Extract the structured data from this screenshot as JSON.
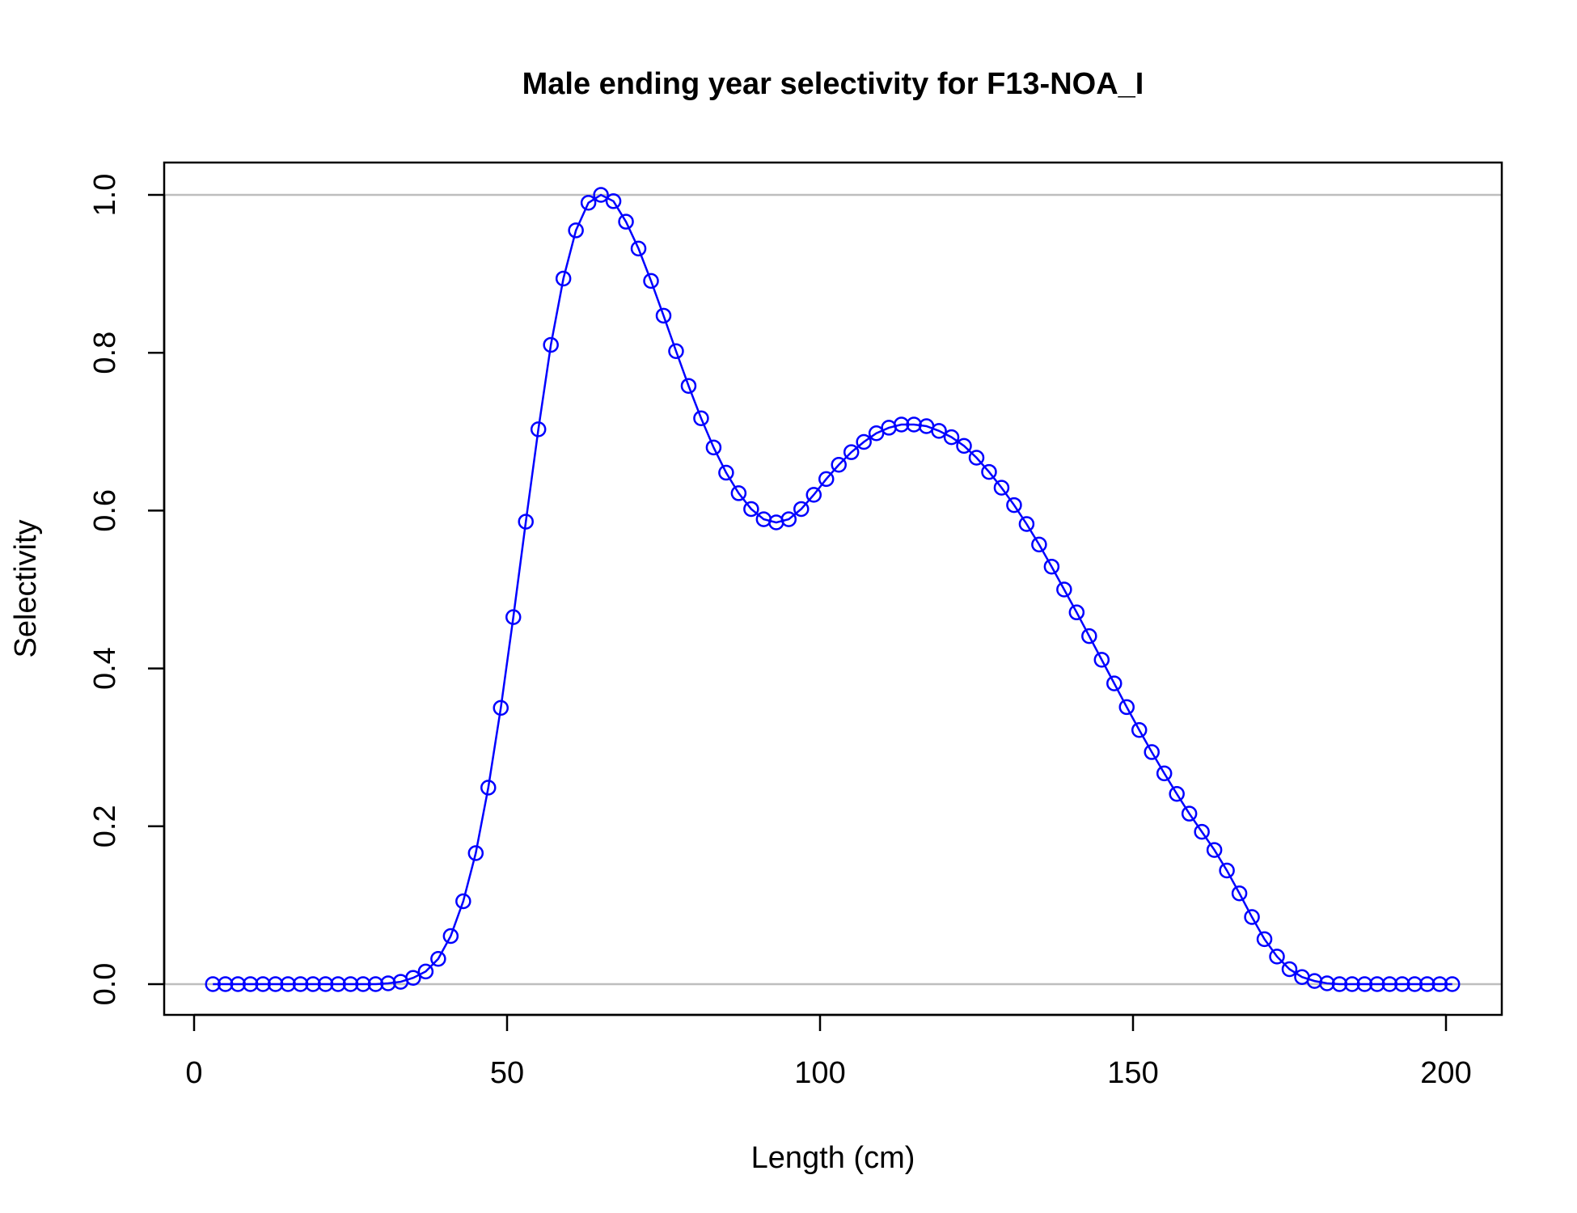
{
  "chart_data": {
    "type": "line",
    "title": "Male ending year selectivity for F13-NOA_I",
    "xlabel": "Length (cm)",
    "ylabel": "Selectivity",
    "xlim": [
      0,
      200
    ],
    "ylim": [
      0,
      1
    ],
    "xticks": [
      0,
      50,
      100,
      150,
      200
    ],
    "xtick_labels": [
      "0",
      "50",
      "100",
      "150",
      "200"
    ],
    "yticks": [
      0,
      0.2,
      0.4,
      0.6,
      0.8,
      1
    ],
    "ytick_labels": [
      "0.0",
      "0.2",
      "0.4",
      "0.6",
      "0.8",
      "1.0"
    ],
    "reference_lines": [
      0,
      1
    ],
    "reference_line_color": "#bebebe",
    "series_color": "#0000ff",
    "marker": "open-circle",
    "series": [
      {
        "x": [
          3,
          5,
          7,
          9,
          11,
          13,
          15,
          17,
          19,
          21,
          23,
          25,
          27,
          29,
          31,
          33,
          35,
          37,
          39,
          41,
          43,
          45,
          47,
          49,
          51,
          53,
          55,
          57,
          59,
          61,
          63,
          65,
          67,
          69,
          71,
          73,
          75,
          77,
          79,
          81,
          83,
          85,
          87,
          89,
          91,
          93,
          95,
          97,
          99,
          101,
          103,
          105,
          107,
          109,
          111,
          113,
          115,
          117,
          119,
          121,
          123,
          125,
          127,
          129,
          131,
          133,
          135,
          137,
          139,
          141,
          143,
          145,
          147,
          149,
          151,
          153,
          155,
          157,
          159,
          161,
          163,
          165,
          167,
          169,
          171,
          173,
          175,
          177,
          179,
          181,
          183,
          185,
          187,
          189,
          191,
          193,
          195,
          197,
          199,
          201
        ],
        "y": [
          0,
          0,
          0,
          0,
          0,
          0,
          0,
          0,
          0,
          0,
          0,
          0,
          0,
          0,
          0.001,
          0.003,
          0.008,
          0.016,
          0.032,
          0.061,
          0.105,
          0.166,
          0.249,
          0.35,
          0.465,
          0.586,
          0.703,
          0.81,
          0.894,
          0.955,
          0.99,
          1.0,
          0.992,
          0.966,
          0.932,
          0.891,
          0.847,
          0.802,
          0.758,
          0.717,
          0.68,
          0.648,
          0.622,
          0.602,
          0.589,
          0.585,
          0.589,
          0.602,
          0.62,
          0.64,
          0.658,
          0.674,
          0.687,
          0.698,
          0.705,
          0.709,
          0.709,
          0.707,
          0.701,
          0.693,
          0.682,
          0.667,
          0.649,
          0.629,
          0.607,
          0.583,
          0.557,
          0.529,
          0.5,
          0.471,
          0.441,
          0.411,
          0.381,
          0.351,
          0.322,
          0.294,
          0.267,
          0.241,
          0.216,
          0.193,
          0.17,
          0.144,
          0.115,
          0.085,
          0.057,
          0.035,
          0.019,
          0.009,
          0.004,
          0.001,
          0,
          0,
          0,
          0,
          0,
          0,
          0,
          0,
          0,
          0
        ]
      }
    ]
  }
}
